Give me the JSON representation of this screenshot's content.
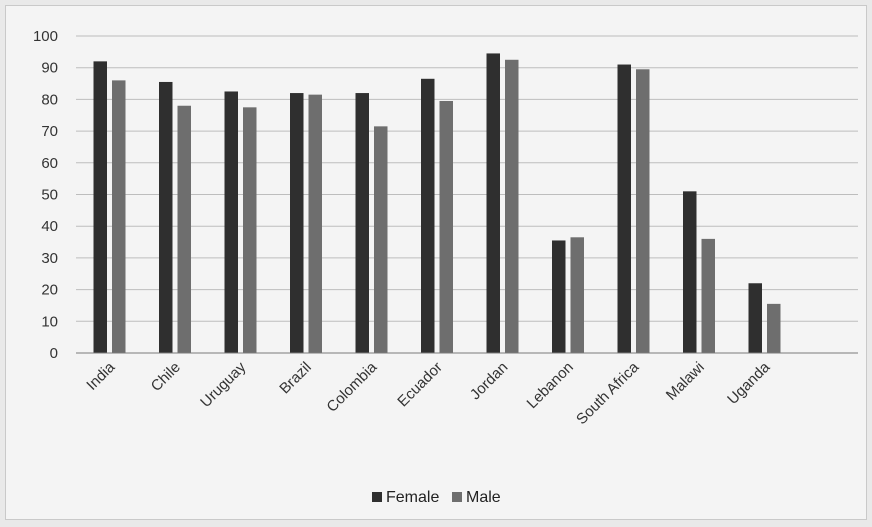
{
  "chart_data": {
    "type": "bar",
    "categories": [
      "India",
      "Chile",
      "Uruguay",
      "Brazil",
      "Colombia",
      "Ecuador",
      "Jordan",
      "Lebanon",
      "South Africa",
      "Malawi",
      "Uganda"
    ],
    "series": [
      {
        "name": "Female",
        "color": "#2f2f2f",
        "values": [
          92,
          85.5,
          82.5,
          82,
          82,
          86.5,
          94.5,
          35.5,
          91,
          51,
          22
        ]
      },
      {
        "name": "Male",
        "color": "#6e6e6e",
        "values": [
          86,
          78,
          77.5,
          81.5,
          71.5,
          79.5,
          92.5,
          36.5,
          89.5,
          36,
          15.5
        ]
      }
    ],
    "ylim": [
      0,
      100
    ],
    "yticks": [
      "0",
      "10",
      "20",
      "30",
      "40",
      "50",
      "60",
      "70",
      "80",
      "90",
      "100"
    ],
    "grid": true,
    "legend_position": "bottom"
  }
}
